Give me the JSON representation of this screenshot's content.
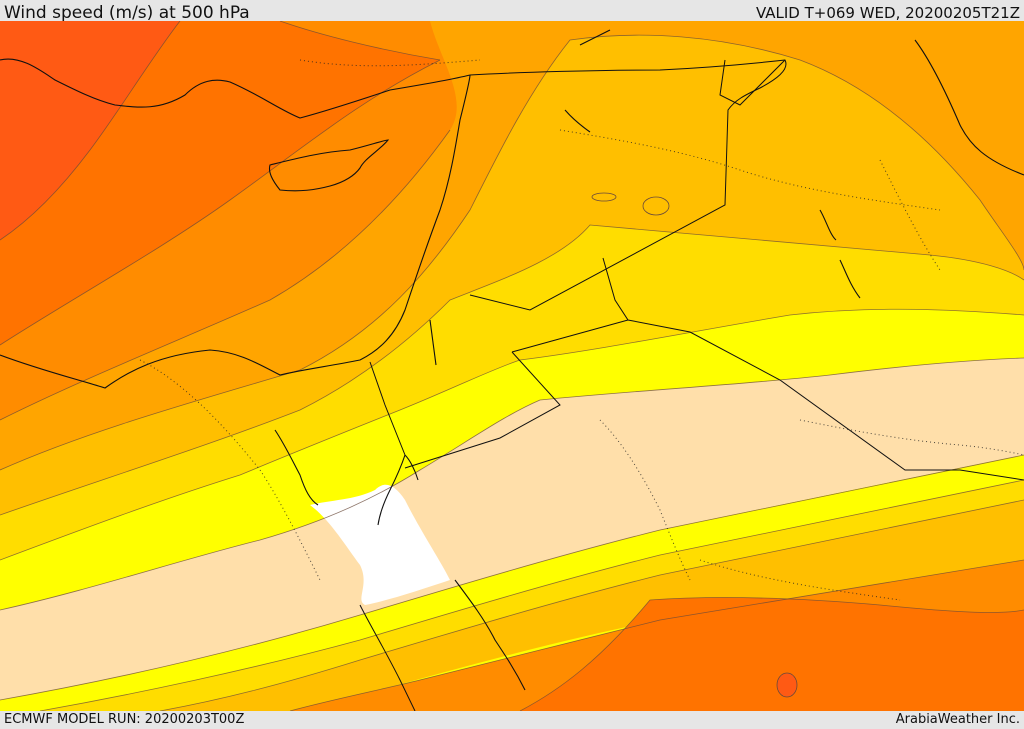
{
  "header": {
    "title": "Wind speed (m/s) at 500 hPa",
    "valid": "VALID T+069 WED, 20200205T21Z"
  },
  "footer": {
    "model_run": "ECMWF MODEL RUN: 20200203T00Z",
    "credit": "ArabiaWeather Inc."
  },
  "colors": {
    "band_strongest": "#ff5a14",
    "band_strong": "#ff7300",
    "band_high": "#ff8c00",
    "band_mid_high": "#ffa500",
    "band_mid": "#ffbf00",
    "band_low_mid": "#ffdd00",
    "band_low": "#ffff00",
    "band_lowest": "#ffdfaa",
    "band_calm": "#ffffff"
  }
}
